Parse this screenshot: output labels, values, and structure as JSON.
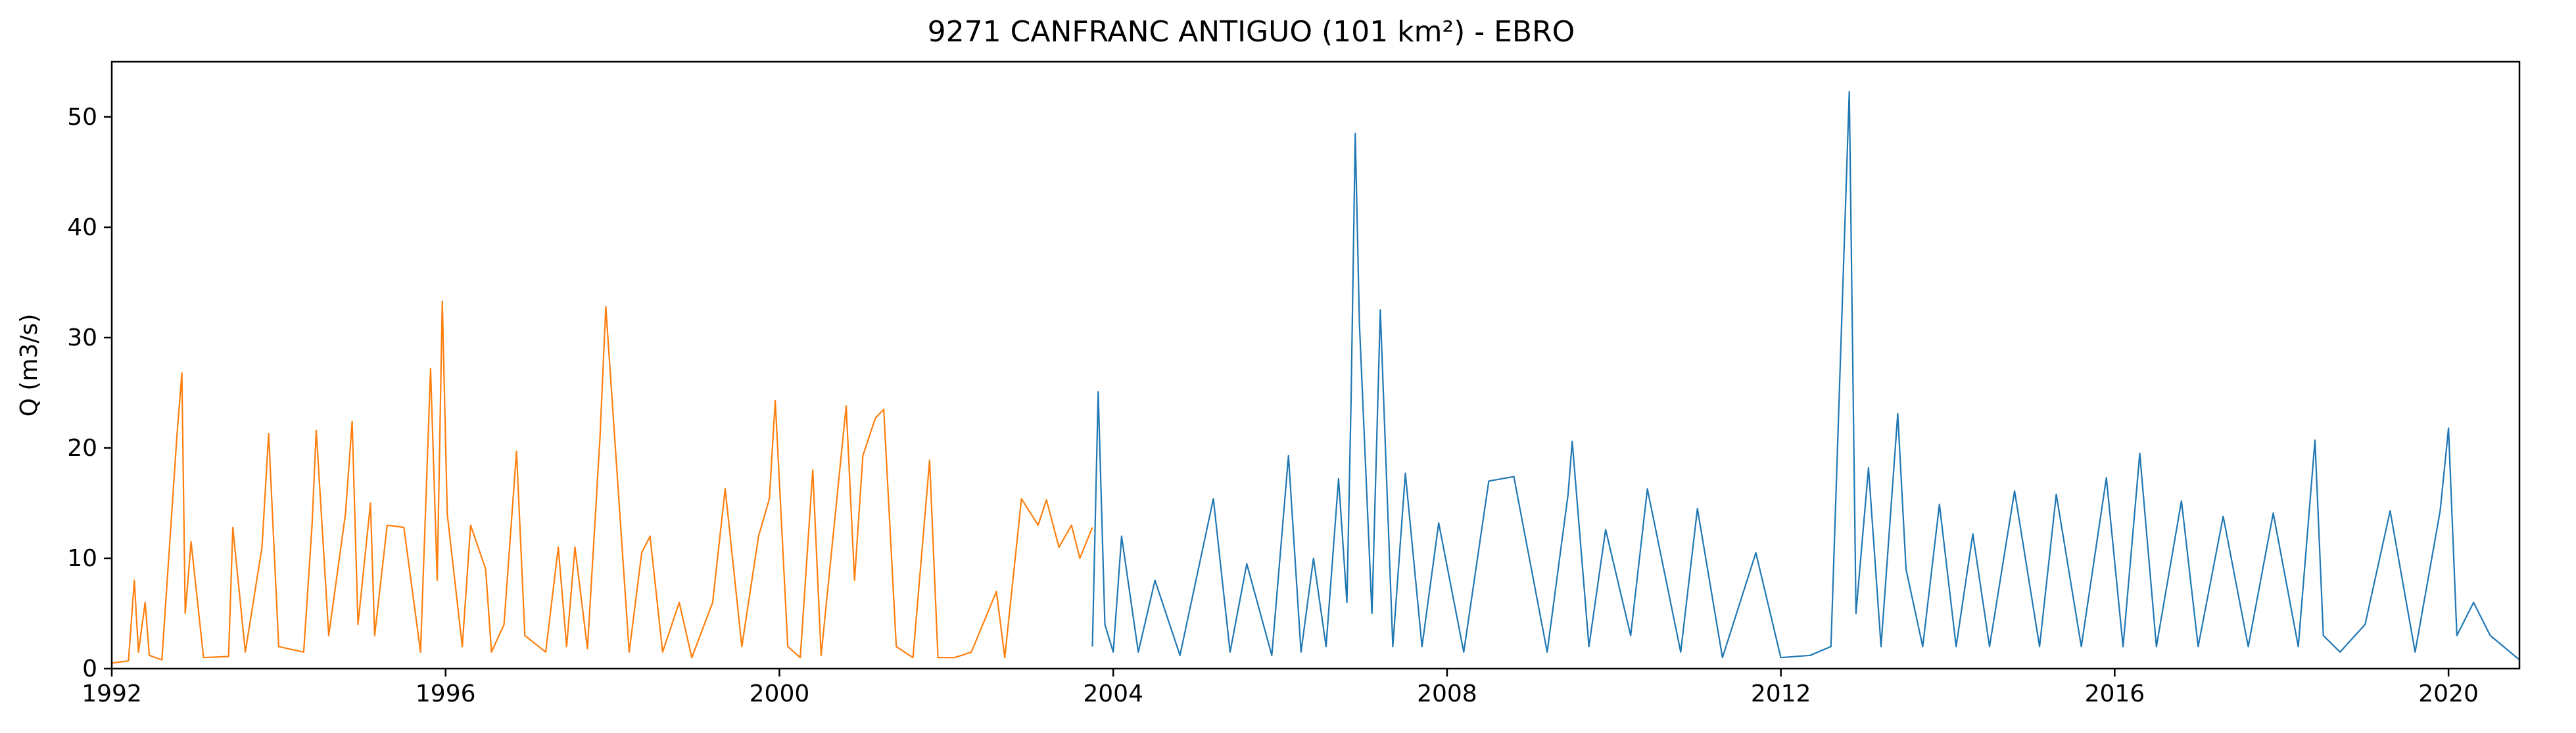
{
  "chart_data": {
    "type": "line",
    "title": "9271 CANFRANC ANTIGUO (101 km²) - EBRO",
    "xlabel": "",
    "ylabel": "Q (m3/s)",
    "xlim": [
      1992.0,
      2020.85
    ],
    "ylim": [
      0,
      55
    ],
    "x_ticks": [
      1992,
      1996,
      2000,
      2004,
      2008,
      2012,
      2016,
      2020
    ],
    "y_ticks": [
      0,
      10,
      20,
      30,
      40,
      50
    ],
    "grid": false,
    "legend": "none",
    "colors": {
      "series_1": "#ff7f0e",
      "series_2": "#1f77b4"
    },
    "series": [
      {
        "color": "#ff7f0e",
        "x": [
          1992.0,
          1992.2,
          1992.27,
          1992.32,
          1992.4,
          1992.45,
          1992.6,
          1992.78,
          1992.84,
          1992.88,
          1992.95,
          1993.1,
          1993.4,
          1993.45,
          1993.6,
          1993.8,
          1993.88,
          1994.0,
          1994.3,
          1994.4,
          1994.45,
          1994.6,
          1994.8,
          1994.88,
          1994.95,
          1995.1,
          1995.15,
          1995.3,
          1995.5,
          1995.7,
          1995.82,
          1995.9,
          1995.96,
          1996.02,
          1996.2,
          1996.3,
          1996.48,
          1996.55,
          1996.7,
          1996.85,
          1996.95,
          1997.2,
          1997.35,
          1997.45,
          1997.55,
          1997.7,
          1997.85,
          1997.92,
          1998.2,
          1998.35,
          1998.45,
          1998.6,
          1998.8,
          1998.95,
          1999.2,
          1999.35,
          1999.55,
          1999.75,
          1999.88,
          1999.95,
          2000.1,
          2000.25,
          2000.4,
          2000.5,
          2000.8,
          2000.9,
          2001.0,
          2001.15,
          2001.25,
          2001.4,
          2001.6,
          2001.8,
          2001.9,
          2002.1,
          2002.3,
          2002.6,
          2002.7,
          2002.9,
          2003.1,
          2003.2,
          2003.35,
          2003.5,
          2003.6,
          2003.75
        ],
        "y": [
          0.5,
          0.7,
          8.0,
          1.5,
          6.0,
          1.2,
          0.8,
          21.0,
          26.8,
          5.0,
          11.5,
          1.0,
          1.1,
          12.8,
          1.5,
          11.0,
          21.3,
          2.0,
          1.5,
          13.0,
          21.6,
          3.0,
          14.0,
          22.4,
          4.0,
          15.0,
          3.0,
          13.0,
          12.8,
          1.5,
          27.2,
          8.0,
          33.3,
          14.0,
          2.0,
          13.0,
          9.0,
          1.5,
          4.0,
          19.7,
          3.0,
          1.5,
          11.0,
          2.0,
          11.0,
          1.8,
          21.0,
          32.8,
          1.5,
          10.5,
          12.0,
          1.5,
          6.0,
          1.0,
          6.0,
          16.3,
          2.0,
          12.0,
          15.4,
          24.3,
          2.0,
          1.0,
          18.0,
          1.2,
          23.8,
          8.0,
          19.3,
          22.7,
          23.5,
          2.0,
          1.0,
          18.9,
          1.0,
          1.0,
          1.5,
          7.0,
          1.0,
          15.4,
          13.0,
          15.3,
          11.0,
          13.0,
          10.0,
          12.8
        ]
      },
      {
        "color": "#1f77b4",
        "x": [
          2003.75,
          2003.82,
          2003.9,
          2004.0,
          2004.1,
          2004.3,
          2004.5,
          2004.8,
          2005.2,
          2005.4,
          2005.6,
          2005.9,
          2006.1,
          2006.25,
          2006.4,
          2006.55,
          2006.7,
          2006.8,
          2006.85,
          2006.9,
          2006.95,
          2007.0,
          2007.1,
          2007.2,
          2007.35,
          2007.5,
          2007.7,
          2007.9,
          2008.2,
          2008.5,
          2008.8,
          2009.2,
          2009.45,
          2009.5,
          2009.7,
          2009.9,
          2010.2,
          2010.4,
          2010.8,
          2011.0,
          2011.3,
          2011.7,
          2012.0,
          2012.35,
          2012.6,
          2012.82,
          2012.9,
          2013.05,
          2013.2,
          2013.4,
          2013.5,
          2013.7,
          2013.9,
          2014.1,
          2014.3,
          2014.5,
          2014.8,
          2015.1,
          2015.3,
          2015.6,
          2015.9,
          2016.1,
          2016.3,
          2016.5,
          2016.8,
          2017.0,
          2017.3,
          2017.6,
          2017.9,
          2018.2,
          2018.4,
          2018.5,
          2018.7,
          2019.0,
          2019.3,
          2019.6,
          2019.9,
          2020.0,
          2020.1,
          2020.3,
          2020.5,
          2020.85
        ],
        "y": [
          2.0,
          25.1,
          4.0,
          1.5,
          12.0,
          1.5,
          8.0,
          1.2,
          15.4,
          1.5,
          9.5,
          1.2,
          19.3,
          1.5,
          10.0,
          2.0,
          17.2,
          6.0,
          24.2,
          48.5,
          31.3,
          22.5,
          5.0,
          32.5,
          2.0,
          17.7,
          2.0,
          13.2,
          1.5,
          17.0,
          17.4,
          1.5,
          15.8,
          20.6,
          2.0,
          12.6,
          3.0,
          16.3,
          1.5,
          14.5,
          1.0,
          10.5,
          1.0,
          1.2,
          2.0,
          52.3,
          5.0,
          18.2,
          2.0,
          23.1,
          9.0,
          2.0,
          14.9,
          2.0,
          12.2,
          2.0,
          16.1,
          2.0,
          15.8,
          2.0,
          17.3,
          2.0,
          19.5,
          2.0,
          15.2,
          2.0,
          13.8,
          2.0,
          14.1,
          2.0,
          20.7,
          3.0,
          1.5,
          4.0,
          14.3,
          1.5,
          14.3,
          21.8,
          3.0,
          6.0,
          3.0,
          0.8
        ]
      }
    ]
  }
}
